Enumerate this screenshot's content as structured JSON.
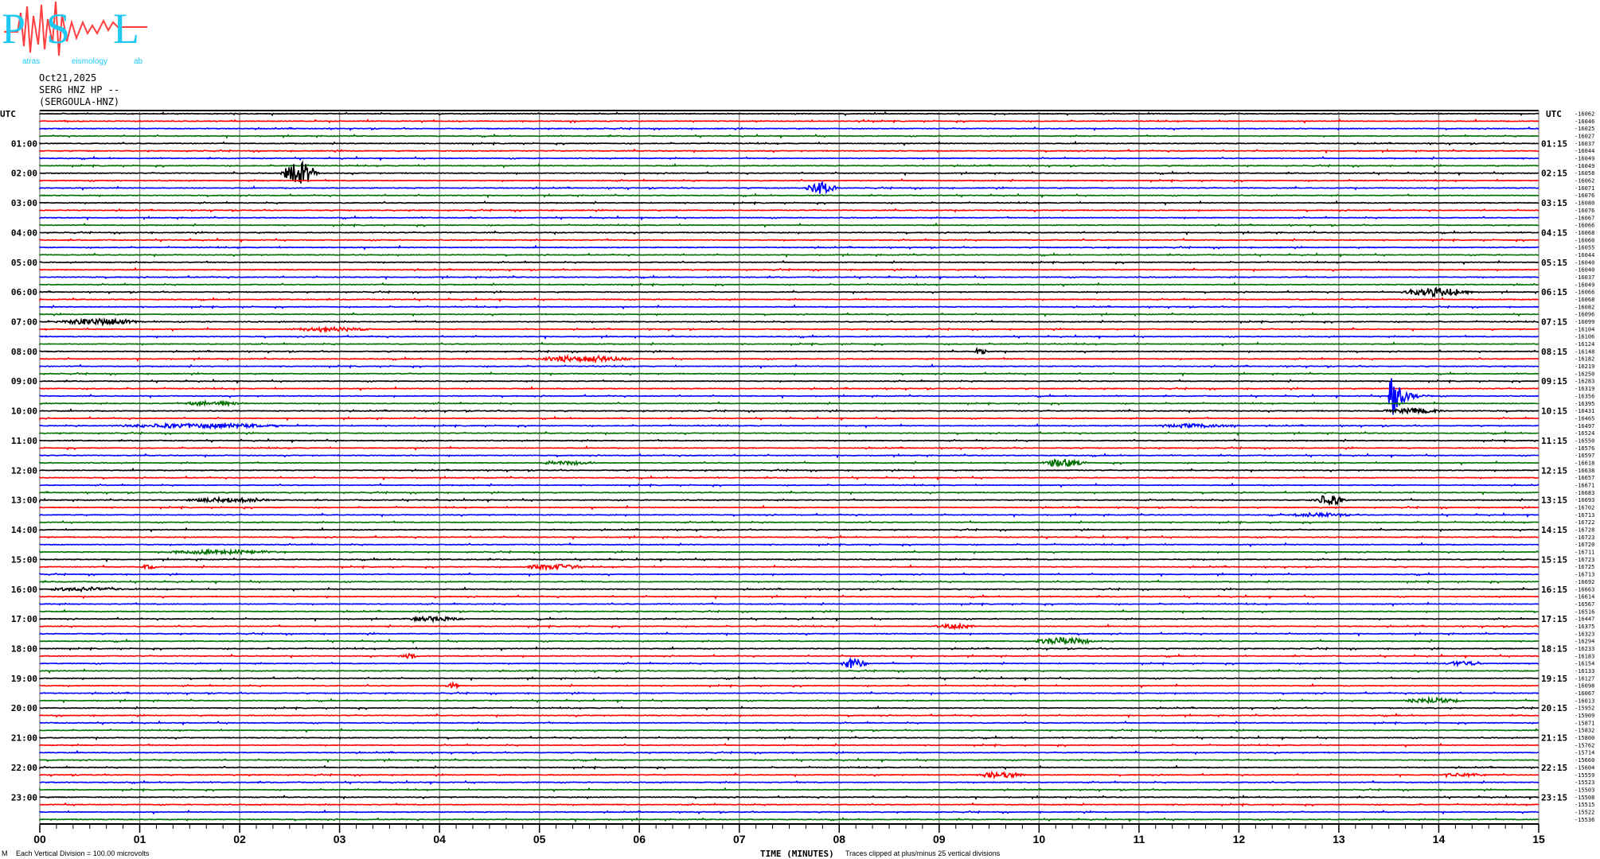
{
  "logo": {
    "text": "PSL",
    "subtitle_letters": [
      "atras",
      "eismology",
      "ab"
    ]
  },
  "header": {
    "date": "Oct21,2025",
    "channel": "SERG HNZ HP --",
    "station": "(SERGOULA-HNZ)"
  },
  "colors": {
    "trace_cycle": [
      "#000000",
      "#ff0000",
      "#0000ff",
      "#007000"
    ],
    "grid": "#888888",
    "logo_cyan": "#1ec8f0",
    "logo_red": "#ff4040"
  },
  "footer": {
    "scale_note": "Each Vertical Division =  100.00 microvolts",
    "xlabel": "TIME (MINUTES)",
    "clip_note": "Traces clipped at plus/minus 25 vertical divisions"
  },
  "chart_data": {
    "type": "line",
    "subtype": "helicorder",
    "xlabel": "TIME (MINUTES)",
    "x_ticks": [
      "00",
      "01",
      "02",
      "03",
      "04",
      "05",
      "06",
      "07",
      "08",
      "09",
      "10",
      "11",
      "12",
      "13",
      "14",
      "15"
    ],
    "xlim": [
      0,
      15
    ],
    "grid": "vertical lines every minute",
    "left_axis_title": "UTC",
    "right_axis_title": "UTC",
    "left_labels": [
      "01:00",
      "02:00",
      "03:00",
      "04:00",
      "05:00",
      "06:00",
      "07:00",
      "08:00",
      "09:00",
      "10:00",
      "11:00",
      "12:00",
      "13:00",
      "14:00",
      "15:00",
      "16:00",
      "17:00",
      "18:00",
      "19:00",
      "20:00",
      "21:00",
      "22:00",
      "23:00"
    ],
    "right_labels": [
      "01:15",
      "02:15",
      "03:15",
      "04:15",
      "05:15",
      "06:15",
      "07:15",
      "08:15",
      "09:15",
      "10:15",
      "11:15",
      "12:15",
      "13:15",
      "14:15",
      "15:15",
      "16:15",
      "17:15",
      "18:15",
      "19:15",
      "20:15",
      "21:15",
      "22:15",
      "23:15"
    ],
    "row_offsets": [
      -16062,
      -16046,
      -16025,
      -16027,
      -16037,
      -16044,
      -16049,
      -16049,
      -16058,
      -16062,
      -16071,
      -16076,
      -16080,
      -16076,
      -16067,
      -16066,
      -16068,
      -16060,
      -16055,
      -16044,
      -16040,
      -16040,
      -16037,
      -16049,
      -16066,
      -16068,
      -16082,
      -16096,
      -16099,
      -16104,
      -16106,
      -16124,
      -16148,
      -16182,
      -16219,
      -16250,
      -16283,
      -16319,
      -16356,
      -16395,
      -16431,
      -16465,
      -16497,
      -16524,
      -16550,
      -16576,
      -16597,
      -16618,
      -16638,
      -16657,
      -16671,
      -16683,
      -16693,
      -16702,
      -16713,
      -16722,
      -16728,
      -16723,
      -16720,
      -16711,
      -16723,
      -16725,
      -16713,
      -16692,
      -16663,
      -16614,
      -16567,
      -16516,
      -16447,
      -16375,
      -16323,
      -16294,
      -16233,
      -16183,
      -16154,
      -16133,
      -16127,
      -16098,
      -16067,
      -16013,
      -15952,
      -15909,
      -15871,
      -15832,
      -15800,
      -15762,
      -15714,
      -15660,
      -15604,
      -15559,
      -15523,
      -15503,
      -15508,
      -15515,
      -15522,
      -15536
    ],
    "row_minutes": 15,
    "events": [
      {
        "row": 8,
        "start_min": 2.4,
        "end_min": 2.8,
        "amplitude_div": 3.0
      },
      {
        "row": 10,
        "start_min": 7.65,
        "end_min": 8.0,
        "amplitude_div": 1.6
      },
      {
        "row": 24,
        "start_min": 13.6,
        "end_min": 14.4,
        "amplitude_div": 1.2
      },
      {
        "row": 28,
        "start_min": 0.1,
        "end_min": 1.1,
        "amplitude_div": 0.8
      },
      {
        "row": 29,
        "start_min": 2.4,
        "end_min": 3.4,
        "amplitude_div": 0.5
      },
      {
        "row": 32,
        "start_min": 9.35,
        "end_min": 9.5,
        "amplitude_div": 1.2
      },
      {
        "row": 33,
        "start_min": 4.9,
        "end_min": 6.0,
        "amplitude_div": 0.8
      },
      {
        "row": 38,
        "start_min": 13.5,
        "end_min": 14.0,
        "amplitude_div": 8.0
      },
      {
        "row": 39,
        "start_min": 1.4,
        "end_min": 2.1,
        "amplitude_div": 0.6
      },
      {
        "row": 40,
        "start_min": 13.4,
        "end_min": 14.1,
        "amplitude_div": 0.7
      },
      {
        "row": 42,
        "start_min": 0.6,
        "end_min": 2.6,
        "amplitude_div": 0.6
      },
      {
        "row": 42,
        "start_min": 11.1,
        "end_min": 12.1,
        "amplitude_div": 0.5
      },
      {
        "row": 47,
        "start_min": 5.0,
        "end_min": 5.6,
        "amplitude_div": 0.5
      },
      {
        "row": 47,
        "start_min": 10.0,
        "end_min": 10.5,
        "amplitude_div": 1.0
      },
      {
        "row": 52,
        "start_min": 1.4,
        "end_min": 2.4,
        "amplitude_div": 0.6
      },
      {
        "row": 52,
        "start_min": 12.7,
        "end_min": 13.1,
        "amplitude_div": 1.3
      },
      {
        "row": 54,
        "start_min": 12.4,
        "end_min": 13.2,
        "amplitude_div": 0.5
      },
      {
        "row": 59,
        "start_min": 1.1,
        "end_min": 2.5,
        "amplitude_div": 0.5
      },
      {
        "row": 61,
        "start_min": 1.0,
        "end_min": 1.2,
        "amplitude_div": 0.6
      },
      {
        "row": 61,
        "start_min": 4.8,
        "end_min": 5.5,
        "amplitude_div": 0.7
      },
      {
        "row": 64,
        "start_min": 0.0,
        "end_min": 0.9,
        "amplitude_div": 0.5
      },
      {
        "row": 68,
        "start_min": 3.6,
        "end_min": 4.3,
        "amplitude_div": 0.6
      },
      {
        "row": 69,
        "start_min": 8.9,
        "end_min": 9.4,
        "amplitude_div": 0.6
      },
      {
        "row": 71,
        "start_min": 9.9,
        "end_min": 10.6,
        "amplitude_div": 1.0
      },
      {
        "row": 73,
        "start_min": 3.6,
        "end_min": 3.8,
        "amplitude_div": 0.7
      },
      {
        "row": 74,
        "start_min": 8.0,
        "end_min": 8.3,
        "amplitude_div": 1.4
      },
      {
        "row": 74,
        "start_min": 14.0,
        "end_min": 14.5,
        "amplitude_div": 0.6
      },
      {
        "row": 77,
        "start_min": 4.05,
        "end_min": 4.2,
        "amplitude_div": 0.7
      },
      {
        "row": 79,
        "start_min": 13.6,
        "end_min": 14.3,
        "amplitude_div": 0.7
      },
      {
        "row": 89,
        "start_min": 9.35,
        "end_min": 9.9,
        "amplitude_div": 0.8
      },
      {
        "row": 89,
        "start_min": 14.0,
        "end_min": 14.5,
        "amplitude_div": 0.5
      }
    ]
  }
}
